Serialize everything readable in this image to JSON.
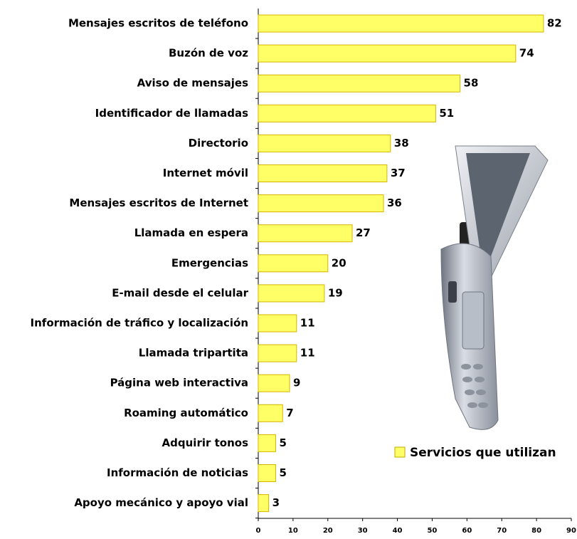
{
  "chart_data": {
    "type": "bar",
    "orientation": "horizontal",
    "categories": [
      "Mensajes escritos de teléfono",
      "Buzón de voz",
      "Aviso de mensajes",
      "Identificador de llamadas",
      "Directorio",
      "Internet móvil",
      "Mensajes escritos de Internet",
      "Llamada en espera",
      "Emergencias",
      "E-mail desde el celular",
      "Información de tráfico y localización",
      "Llamada tripartita",
      "Página web interactiva",
      "Roaming automático",
      "Adquirir tonos",
      "Información de noticias",
      "Apoyo mecánico y apoyo vial"
    ],
    "series": [
      {
        "name": "Servicios que utilizan",
        "color": "#ffff66",
        "values": [
          82,
          74,
          58,
          51,
          38,
          37,
          36,
          27,
          20,
          19,
          11,
          11,
          9,
          7,
          5,
          5,
          3
        ]
      }
    ],
    "xlim": [
      0,
      90
    ],
    "xticks": [
      0,
      10,
      20,
      30,
      40,
      50,
      60,
      70,
      80,
      90
    ],
    "legend": "lower right",
    "grid": false
  }
}
